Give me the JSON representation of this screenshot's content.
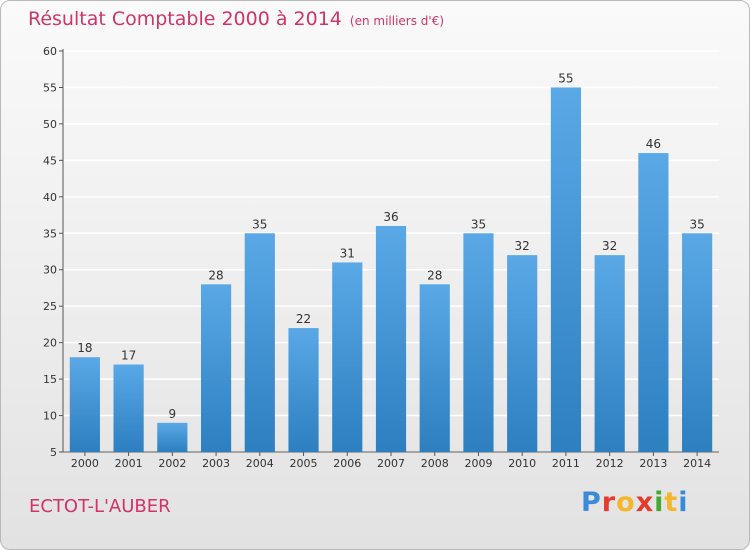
{
  "title": "Résultat Comptable 2000 à 2014",
  "unit": "(en milliers d'€)",
  "city": "ECTOT-L'AUBER",
  "logo": {
    "text": "Proxiti",
    "letters": [
      "P",
      "r",
      "o",
      "x",
      "i",
      "t",
      "i"
    ],
    "colors": [
      "#3b8ad8",
      "#e8392d",
      "#f5b62a",
      "#e8392d",
      "#46a832",
      "#f5b62a",
      "#3b8ad8"
    ]
  },
  "colors": {
    "bar_top": "#5aa8e6",
    "bar_bottom": "#2d7fc0",
    "title": "#d2336b",
    "grid": "#ffffff"
  },
  "chart_data": {
    "type": "bar",
    "title": "Résultat Comptable 2000 à 2014",
    "ylabel": "en milliers d'€",
    "categories": [
      "2000",
      "2001",
      "2002",
      "2003",
      "2004",
      "2005",
      "2006",
      "2007",
      "2008",
      "2009",
      "2010",
      "2011",
      "2012",
      "2013",
      "2014"
    ],
    "values": [
      18,
      17,
      9,
      28,
      35,
      22,
      31,
      36,
      28,
      35,
      32,
      55,
      32,
      46,
      35
    ],
    "ylim": [
      5,
      60
    ],
    "yticks": [
      5,
      10,
      15,
      20,
      25,
      30,
      35,
      40,
      45,
      50,
      55,
      60
    ],
    "grid": true
  }
}
